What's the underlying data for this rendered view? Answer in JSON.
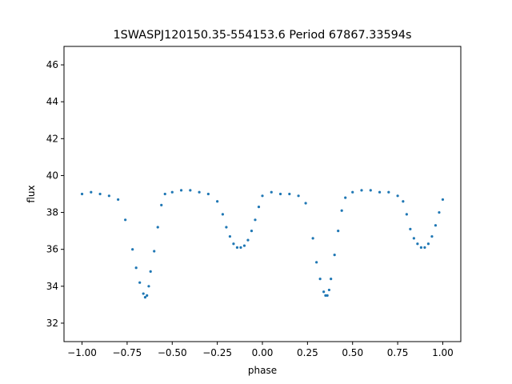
{
  "chart_data": {
    "type": "scatter",
    "title": "1SWASPJ120150.35-554153.6 Period 67867.33594s",
    "xlabel": "phase",
    "ylabel": "flux",
    "xlim": [
      -1.1,
      1.1
    ],
    "ylim": [
      31.0,
      47.0
    ],
    "x_ticks": [
      -1.0,
      -0.75,
      -0.5,
      -0.25,
      0.0,
      0.25,
      0.5,
      0.75,
      1.0
    ],
    "x_tick_labels": [
      "−1.00",
      "−0.75",
      "−0.50",
      "−0.25",
      "0.00",
      "0.25",
      "0.50",
      "0.75",
      "1.00"
    ],
    "y_ticks": [
      32,
      34,
      36,
      38,
      40,
      42,
      44,
      46
    ],
    "y_tick_labels": [
      "32",
      "34",
      "36",
      "38",
      "40",
      "42",
      "44",
      "46"
    ],
    "point_color": "#1f77b4",
    "grid": false,
    "x": [
      -1.0,
      -0.95,
      -0.9,
      -0.85,
      -0.8,
      -0.76,
      -0.72,
      -0.7,
      -0.68,
      -0.66,
      -0.65,
      -0.64,
      -0.63,
      -0.62,
      -0.6,
      -0.58,
      -0.56,
      -0.54,
      -0.5,
      -0.45,
      -0.4,
      -0.35,
      -0.3,
      -0.25,
      -0.22,
      -0.2,
      -0.18,
      -0.16,
      -0.14,
      -0.12,
      -0.1,
      -0.08,
      -0.06,
      -0.04,
      -0.02,
      0.0,
      0.05,
      0.1,
      0.15,
      0.2,
      0.24,
      0.28,
      0.3,
      0.32,
      0.34,
      0.35,
      0.36,
      0.37,
      0.38,
      0.4,
      0.42,
      0.44,
      0.46,
      0.5,
      0.55,
      0.6,
      0.65,
      0.7,
      0.75,
      0.78,
      0.8,
      0.82,
      0.84,
      0.86,
      0.88,
      0.9,
      0.92,
      0.94,
      0.96,
      0.98,
      1.0
    ],
    "y": [
      39.0,
      39.1,
      39.0,
      38.9,
      38.7,
      37.6,
      36.0,
      35.0,
      34.2,
      33.6,
      33.4,
      33.5,
      34.0,
      34.8,
      35.9,
      37.2,
      38.4,
      39.0,
      39.1,
      39.2,
      39.2,
      39.1,
      39.0,
      38.6,
      37.9,
      37.2,
      36.7,
      36.3,
      36.1,
      36.1,
      36.2,
      36.5,
      37.0,
      37.6,
      38.3,
      38.9,
      39.1,
      39.0,
      39.0,
      38.9,
      38.5,
      36.6,
      35.3,
      34.4,
      33.7,
      33.5,
      33.5,
      33.8,
      34.4,
      35.7,
      37.0,
      38.1,
      38.8,
      39.1,
      39.2,
      39.2,
      39.1,
      39.1,
      38.9,
      38.6,
      37.9,
      37.1,
      36.6,
      36.3,
      36.1,
      36.1,
      36.3,
      36.7,
      37.3,
      38.0,
      38.7
    ]
  }
}
